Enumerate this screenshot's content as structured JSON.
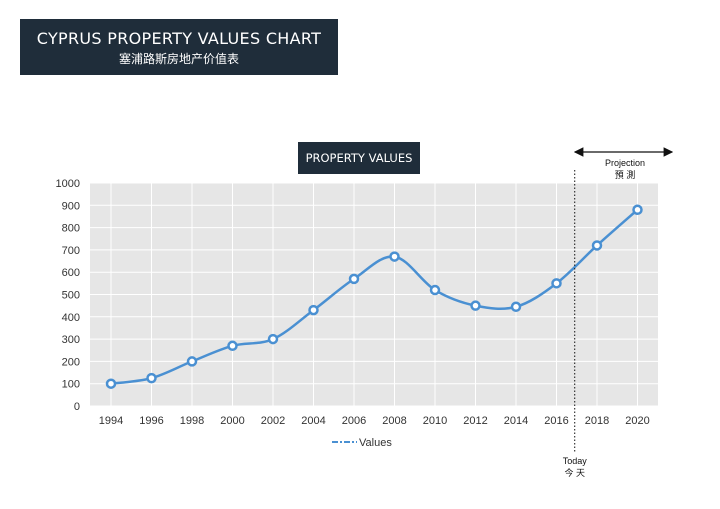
{
  "header": {
    "title": "CYPRUS PROPERTY VALUES CHART",
    "subtitle": "塞浦路斯房地产价值表"
  },
  "chart_data": {
    "type": "line",
    "title": "PROPERTY VALUES",
    "xlabel": "",
    "ylabel": "",
    "categories": [
      "1994",
      "1996",
      "1998",
      "2000",
      "2002",
      "2004",
      "2006",
      "2008",
      "2010",
      "2012",
      "2014",
      "2016",
      "2018",
      "2020"
    ],
    "series": [
      {
        "name": "Values",
        "values": [
          100,
          125,
          200,
          270,
          300,
          430,
          570,
          670,
          520,
          450,
          445,
          550,
          720,
          880
        ]
      }
    ],
    "ylim": [
      0,
      1000
    ],
    "yticks": [
      0,
      100,
      200,
      300,
      400,
      500,
      600,
      700,
      800,
      900,
      1000
    ],
    "grid": true,
    "legend": "bottom",
    "colors": {
      "line": "#4a90d2",
      "marker_fill": "#ffffff",
      "plot_bg": "#e6e6e6",
      "grid": "#ffffff"
    },
    "annotations": {
      "today_label": "Today",
      "today_label_zh": "今 天",
      "today_x": 2016.9,
      "projection_label": "Projection",
      "projection_label_zh": "預 測"
    }
  }
}
